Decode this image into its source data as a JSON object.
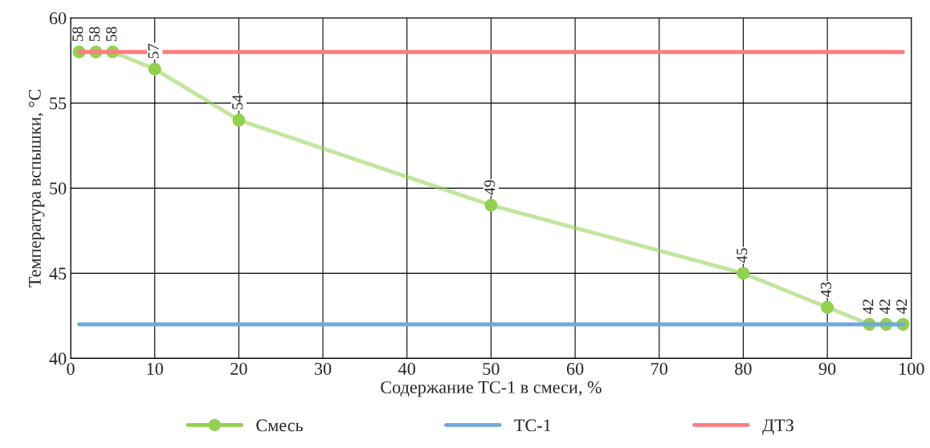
{
  "chart_data": {
    "type": "line",
    "xlabel": "Содержание ТС-1 в смеси, %",
    "ylabel": "Температура вспышки, °С",
    "xlim": [
      0,
      100
    ],
    "xticks": [
      0,
      10,
      20,
      30,
      40,
      50,
      60,
      70,
      80,
      90,
      100
    ],
    "ylim": [
      40,
      60
    ],
    "yticks": [
      40,
      45,
      50,
      55,
      60
    ],
    "grid": true,
    "legend": "bottom",
    "series": [
      {
        "name": "Смесь",
        "color": "#92d050",
        "marker": "circle",
        "x": [
          1,
          3,
          5,
          10,
          20,
          50,
          80,
          90,
          95,
          97,
          99
        ],
        "values": [
          58,
          58,
          58,
          57,
          54,
          49,
          45,
          43,
          42,
          42,
          42
        ],
        "value_labels": [
          "58",
          "58",
          "58",
          "57",
          "54",
          "49",
          "45",
          "43",
          "42",
          "42",
          "42"
        ]
      },
      {
        "name": "ТС-1",
        "color": "#6fa8dc",
        "marker": "none",
        "x": [
          1,
          99
        ],
        "values": [
          42,
          42
        ]
      },
      {
        "name": "ДТЗ",
        "color": "#ff7c80",
        "marker": "none",
        "x": [
          1,
          99
        ],
        "values": [
          58,
          58
        ]
      }
    ]
  }
}
